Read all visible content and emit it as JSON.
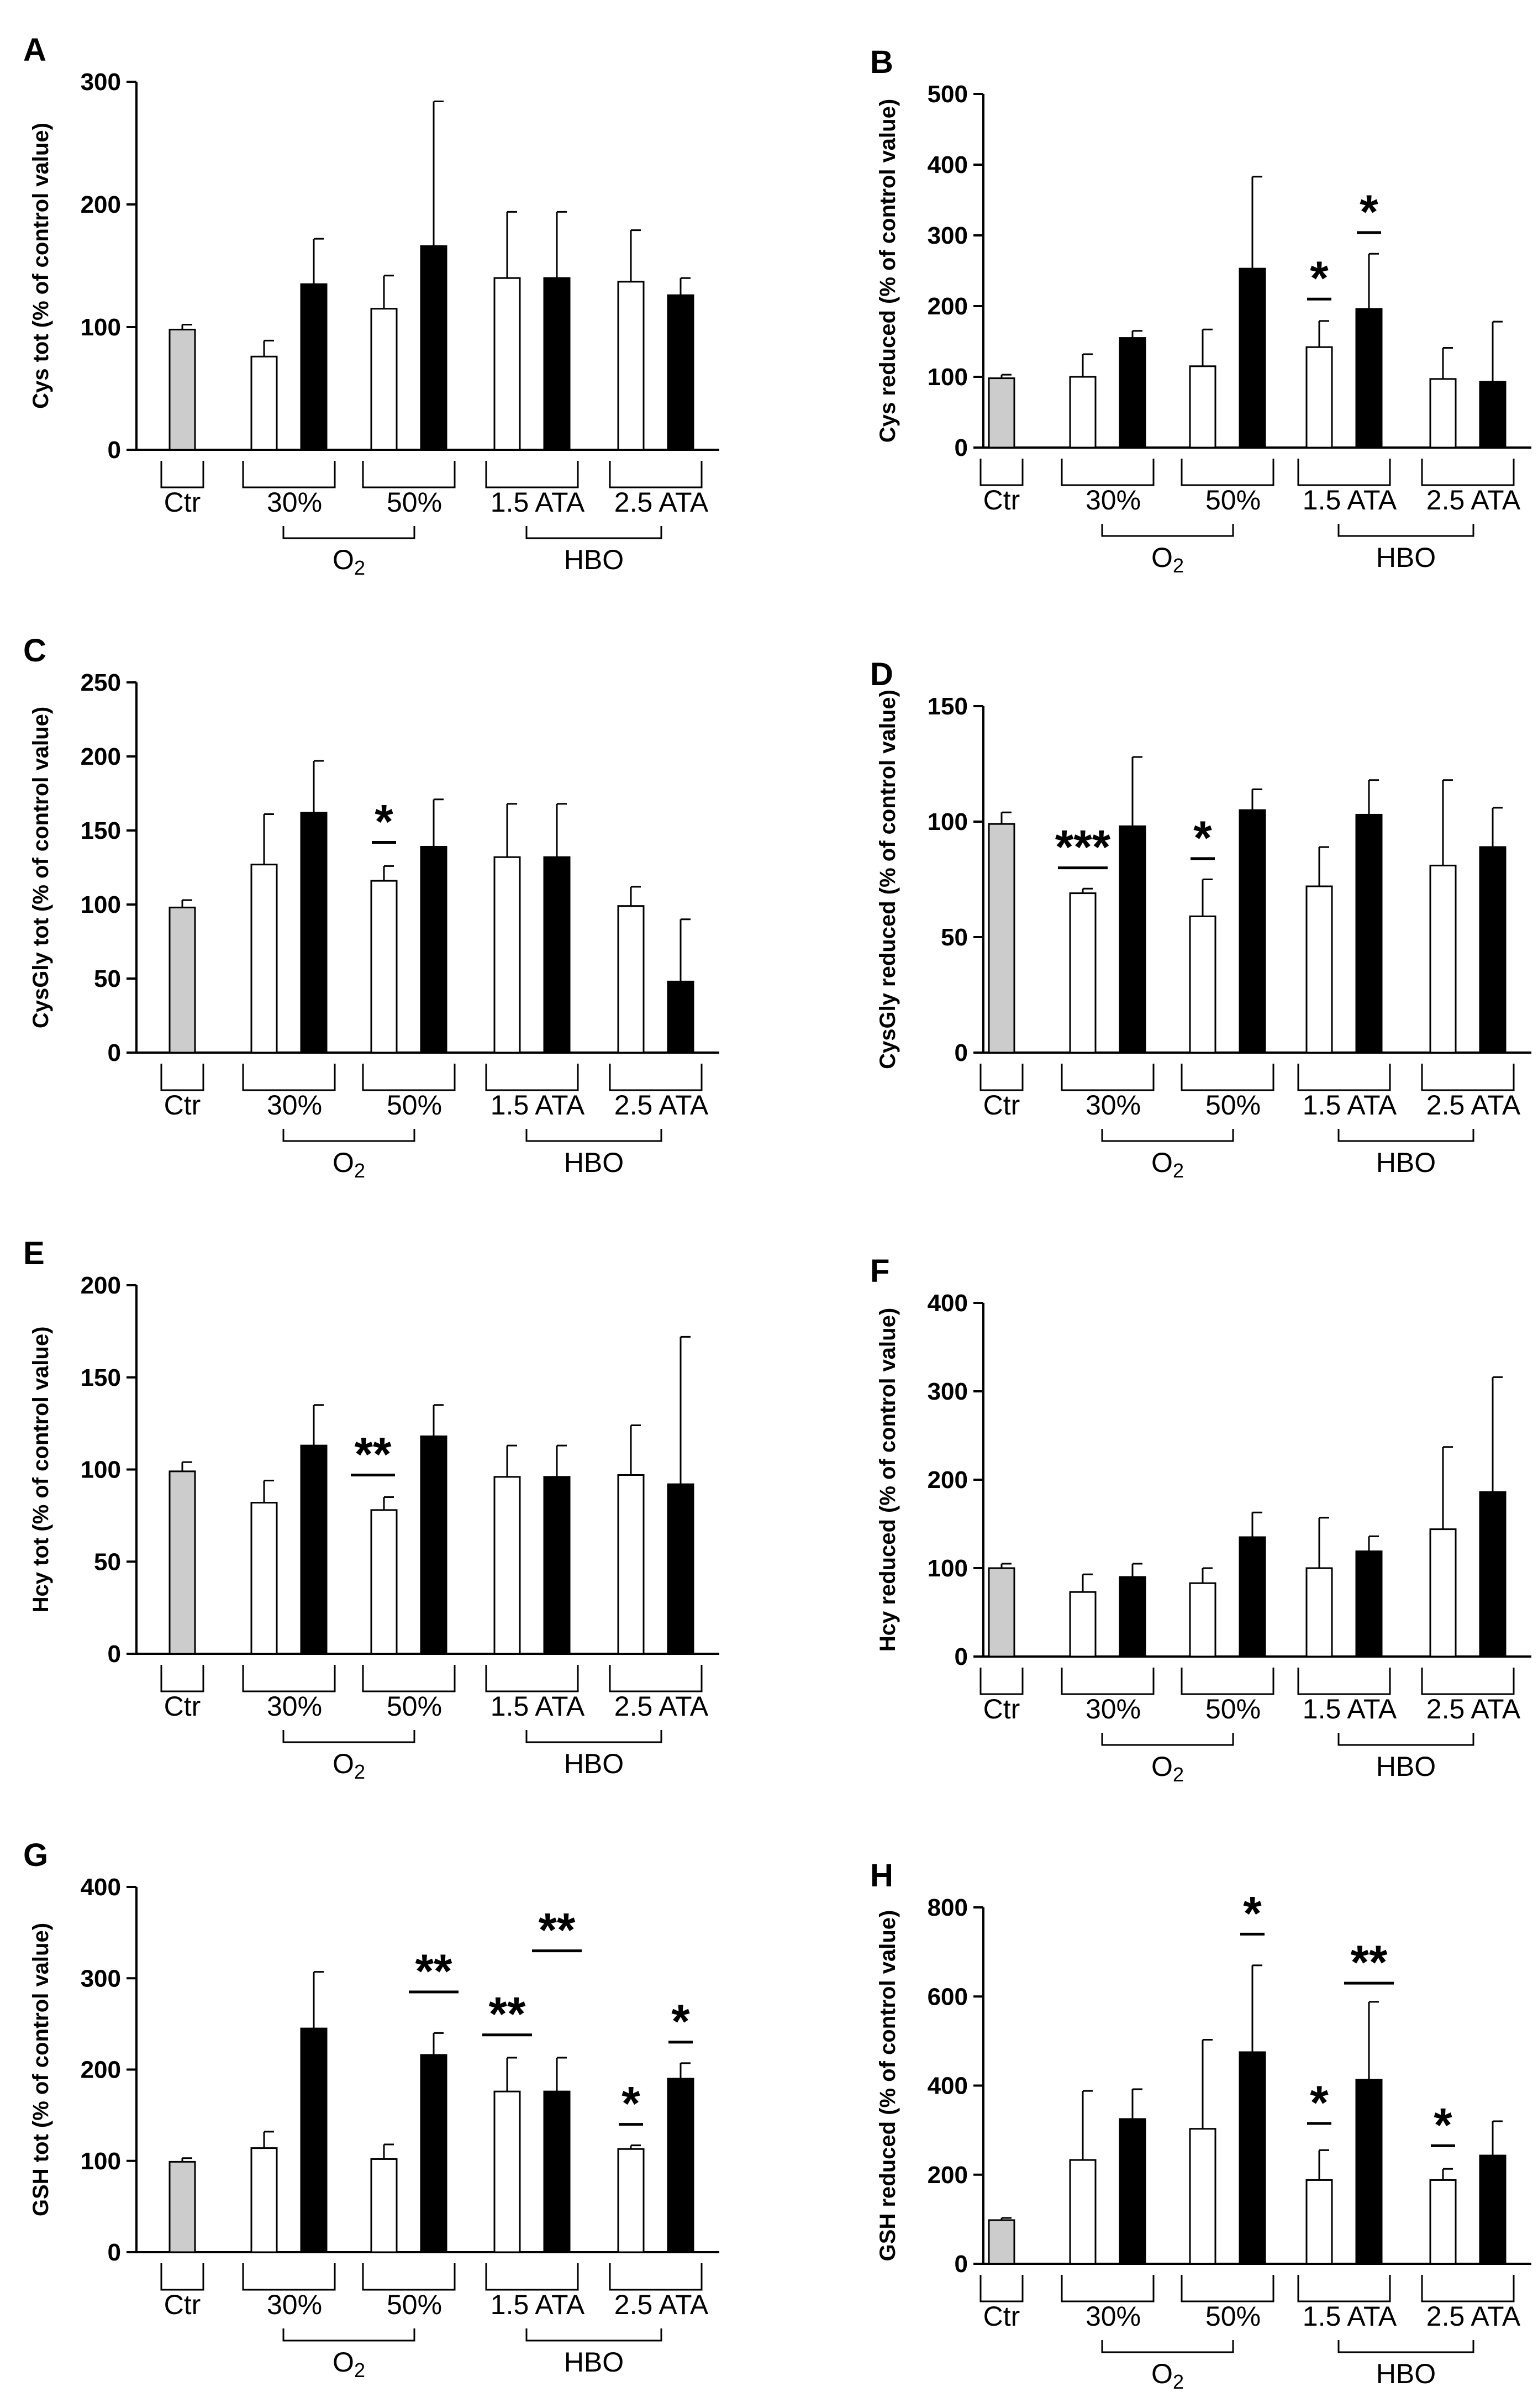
{
  "figure": {
    "group_labels": [
      "Ctr",
      "30%",
      "50%",
      "1.5 ATA",
      "2.5 ATA"
    ],
    "category_labels": {
      "o2": "O",
      "o2_sub": "2",
      "hbo": "HBO"
    },
    "colors": {
      "control": "#cccccc",
      "condition_a": "#ffffff",
      "condition_b": "#000000",
      "axis": "#000000"
    }
  },
  "chart_data": [
    {
      "panel": "A",
      "type": "bar",
      "ylabel": "Cys tot (% of control value)",
      "ylim": [
        0,
        300
      ],
      "yticks": [
        0,
        100,
        200,
        300
      ],
      "values": [
        98,
        76,
        135,
        115,
        166,
        140,
        140,
        137,
        126
      ],
      "errors": [
        4,
        13,
        37,
        27,
        118,
        54,
        54,
        42,
        14
      ],
      "significance": []
    },
    {
      "panel": "B",
      "type": "bar",
      "ylabel": "Cys reduced (% of control value)",
      "ylim": [
        0,
        500
      ],
      "yticks": [
        0,
        100,
        200,
        300,
        400,
        500
      ],
      "values": [
        98,
        100,
        155,
        115,
        253,
        142,
        196,
        97,
        93
      ],
      "errors": [
        5,
        32,
        10,
        52,
        130,
        37,
        78,
        44,
        85
      ],
      "significance": [
        {
          "bar": 5,
          "label": "*",
          "y": 210,
          "span": "short"
        },
        {
          "bar": 6,
          "label": "*",
          "y": 304,
          "span": "short"
        }
      ]
    },
    {
      "panel": "C",
      "type": "bar",
      "ylabel": "CysGly tot (% of control value)",
      "ylim": [
        0,
        250
      ],
      "yticks": [
        0,
        50,
        100,
        150,
        200,
        250
      ],
      "values": [
        98,
        127,
        162,
        116,
        139,
        132,
        132,
        99,
        48
      ],
      "errors": [
        5,
        34,
        35,
        10,
        32,
        36,
        36,
        13,
        42
      ],
      "significance": [
        {
          "bar": 3,
          "label": "*",
          "y": 142,
          "span": "short"
        }
      ]
    },
    {
      "panel": "D",
      "type": "bar",
      "ylabel": "CysGly reduced (% of control value)",
      "ylim": [
        0,
        150
      ],
      "yticks": [
        0,
        50,
        100,
        150
      ],
      "values": [
        99,
        69,
        98,
        59,
        105,
        72,
        103,
        81,
        89
      ],
      "errors": [
        5,
        2,
        30,
        16,
        9,
        17,
        15,
        37,
        17
      ],
      "significance": [
        {
          "bar": 1,
          "label": "***",
          "y": 80,
          "span": "wide"
        },
        {
          "bar": 3,
          "label": "*",
          "y": 84,
          "span": "short"
        }
      ]
    },
    {
      "panel": "E",
      "type": "bar",
      "ylabel": "Hcy tot (% of control value)",
      "ylim": [
        0,
        200
      ],
      "yticks": [
        0,
        50,
        100,
        150,
        200
      ],
      "values": [
        99,
        82,
        113,
        78,
        118,
        96,
        96,
        97,
        92
      ],
      "errors": [
        5,
        12,
        22,
        7,
        17,
        17,
        17,
        27,
        80
      ],
      "significance": [
        {
          "bar": 3,
          "label": "**",
          "y": 97,
          "span": "pair"
        }
      ]
    },
    {
      "panel": "F",
      "type": "bar",
      "ylabel": "Hcy reduced (% of control value)",
      "ylim": [
        0,
        400
      ],
      "yticks": [
        0,
        100,
        200,
        300,
        400
      ],
      "values": [
        100,
        73,
        90,
        83,
        135,
        100,
        119,
        144,
        186
      ],
      "errors": [
        5,
        20,
        15,
        17,
        28,
        57,
        17,
        93,
        130
      ],
      "significance": []
    },
    {
      "panel": "G",
      "type": "bar",
      "ylabel": "GSH tot (% of control value)",
      "ylim": [
        0,
        400
      ],
      "yticks": [
        0,
        100,
        200,
        300,
        400
      ],
      "values": [
        99,
        114,
        245,
        102,
        216,
        176,
        176,
        113,
        190
      ],
      "errors": [
        4,
        18,
        62,
        16,
        24,
        37,
        37,
        4,
        17
      ],
      "significance": [
        {
          "bar": 4,
          "label": "**",
          "y": 285,
          "span": "wide"
        },
        {
          "bar": 5,
          "label": "**",
          "y": 238,
          "span": "wide"
        },
        {
          "bar": 6,
          "label": "**",
          "y": 330,
          "span": "wide"
        },
        {
          "bar": 7,
          "label": "*",
          "y": 140,
          "span": "short"
        },
        {
          "bar": 8,
          "label": "*",
          "y": 230,
          "span": "short"
        }
      ]
    },
    {
      "panel": "H",
      "type": "bar",
      "ylabel": "GSH reduced (% of control value)",
      "ylim": [
        0,
        800
      ],
      "yticks": [
        0,
        200,
        400,
        600,
        800
      ],
      "values": [
        98,
        233,
        325,
        303,
        475,
        188,
        413,
        188,
        243
      ],
      "errors": [
        5,
        155,
        67,
        200,
        195,
        67,
        175,
        25,
        77
      ],
      "significance": [
        {
          "bar": 4,
          "label": "*",
          "y": 740,
          "span": "short"
        },
        {
          "bar": 5,
          "label": "*",
          "y": 315,
          "span": "short"
        },
        {
          "bar": 6,
          "label": "**",
          "y": 630,
          "span": "wide"
        },
        {
          "bar": 7,
          "label": "*",
          "y": 265,
          "span": "short"
        }
      ]
    }
  ]
}
